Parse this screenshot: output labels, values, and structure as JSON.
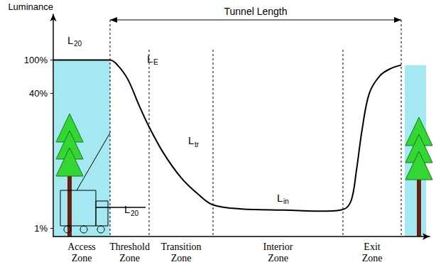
{
  "chart_data": {
    "type": "line",
    "y_label": "Luminance",
    "x": [
      0,
      80,
      90,
      105,
      120,
      135,
      155,
      180,
      205,
      225,
      265,
      325,
      385,
      410,
      420,
      427,
      435,
      445,
      460,
      475,
      490
    ],
    "values": [
      100,
      100,
      88,
      59,
      30,
      16,
      7.9,
      4.0,
      2.5,
      1.9,
      1.7,
      1.65,
      1.6,
      1.7,
      2.2,
      4.9,
      15,
      40,
      65,
      79,
      87
    ],
    "color": "#000000",
    "xlim": [
      0,
      530
    ],
    "ylim": [
      0.8,
      350
    ],
    "yticks": [
      {
        "value": 1,
        "label": "1%"
      },
      {
        "value": 40,
        "label": "40%"
      },
      {
        "value": 100,
        "label": "100%"
      }
    ],
    "log": "y",
    "grid": false,
    "tick_labels": "y",
    "zones": [
      {
        "label": "Access Zone",
        "start": 0,
        "end": 80
      },
      {
        "label": "Threshold Zone",
        "start": 80,
        "end": 135
      },
      {
        "label": "Transition Zone",
        "start": 135,
        "end": 225
      },
      {
        "label": "Interior Zone",
        "start": 225,
        "end": 408
      },
      {
        "label": "Exit Zone",
        "start": 408,
        "end": 490
      }
    ],
    "span": {
      "label": "Tunnel Length",
      "start": 80,
      "end": 490
    },
    "annotations": [
      "L20",
      "LE",
      "Ltr",
      "Lin",
      "L20"
    ]
  }
}
